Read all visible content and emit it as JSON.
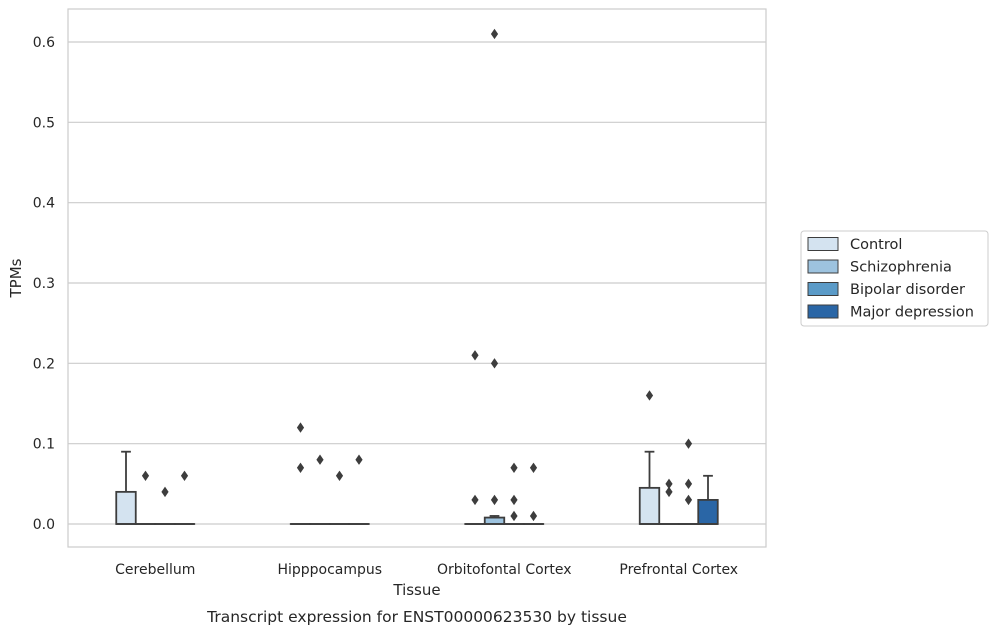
{
  "chart_data": {
    "type": "box",
    "xlabel": "Tissue",
    "ylabel": "TPMs",
    "caption": "Transcript expression for ENST00000623530 by tissue",
    "ylim": [
      -0.03,
      0.64
    ],
    "yticks": [
      "0.0",
      "0.1",
      "0.2",
      "0.3",
      "0.4",
      "0.5",
      "0.6"
    ],
    "grid": "horizontal",
    "legend_position": "right",
    "categories": [
      "Cerebellum",
      "Hipppocampus",
      "Orbitofontal Cortex",
      "Prefrontal Cortex"
    ],
    "series": [
      {
        "name": "Control",
        "color": "#d4e3f0",
        "boxes": [
          {
            "min": 0,
            "q1": 0,
            "median": 0,
            "q3": 0.04,
            "max": 0.09,
            "outliers": []
          },
          {
            "min": 0,
            "q1": 0,
            "median": 0,
            "q3": 0,
            "max": 0,
            "outliers": [
              0.07,
              0.12
            ]
          },
          {
            "min": 0,
            "q1": 0,
            "median": 0,
            "q3": 0,
            "max": 0,
            "outliers": [
              0.03,
              0.21
            ]
          },
          {
            "min": 0,
            "q1": 0,
            "median": 0,
            "q3": 0.045,
            "max": 0.09,
            "outliers": [
              0.16
            ]
          }
        ]
      },
      {
        "name": "Schizophrenia",
        "color": "#9dc3df",
        "boxes": [
          {
            "min": 0,
            "q1": 0,
            "median": 0,
            "q3": 0,
            "max": 0,
            "outliers": [
              0.06
            ]
          },
          {
            "min": 0,
            "q1": 0,
            "median": 0,
            "q3": 0,
            "max": 0,
            "outliers": [
              0.08
            ]
          },
          {
            "min": 0,
            "q1": 0,
            "median": 0,
            "q3": 0.008,
            "max": 0.01,
            "outliers": [
              0.03,
              0.2,
              0.61
            ]
          },
          {
            "min": 0,
            "q1": 0,
            "median": 0,
            "q3": 0,
            "max": 0,
            "outliers": [
              0.04,
              0.05
            ]
          }
        ]
      },
      {
        "name": "Bipolar disorder",
        "color": "#5b9bc8",
        "boxes": [
          {
            "min": 0,
            "q1": 0,
            "median": 0,
            "q3": 0,
            "max": 0,
            "outliers": [
              0.04
            ]
          },
          {
            "min": 0,
            "q1": 0,
            "median": 0,
            "q3": 0,
            "max": 0,
            "outliers": [
              0.06
            ]
          },
          {
            "min": 0,
            "q1": 0,
            "median": 0,
            "q3": 0,
            "max": 0,
            "outliers": [
              0.01,
              0.03,
              0.07
            ]
          },
          {
            "min": 0,
            "q1": 0,
            "median": 0,
            "q3": 0,
            "max": 0,
            "outliers": [
              0.03,
              0.05,
              0.1
            ]
          }
        ]
      },
      {
        "name": "Major depression",
        "color": "#2a66a6",
        "boxes": [
          {
            "min": 0,
            "q1": 0,
            "median": 0,
            "q3": 0,
            "max": 0,
            "outliers": [
              0.06
            ]
          },
          {
            "min": 0,
            "q1": 0,
            "median": 0,
            "q3": 0,
            "max": 0,
            "outliers": [
              0.08
            ]
          },
          {
            "min": 0,
            "q1": 0,
            "median": 0,
            "q3": 0,
            "max": 0,
            "outliers": [
              0.01,
              0.07
            ]
          },
          {
            "min": 0,
            "q1": 0,
            "median": 0,
            "q3": 0.03,
            "max": 0.06,
            "outliers": []
          }
        ]
      }
    ]
  }
}
